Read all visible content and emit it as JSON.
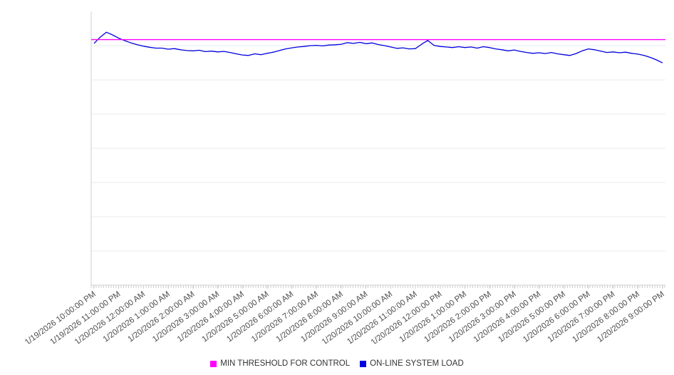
{
  "style": {
    "background": "#ffffff",
    "grid_color": "#ebebeb",
    "axis_color": "#cfcfcf",
    "tick_label_color": "#4d4d4d",
    "legend_text_color": "#333333"
  },
  "chart_data": {
    "type": "line",
    "title": "",
    "xlabel": "",
    "ylabel": "",
    "ylim": [
      0,
      100
    ],
    "y_axis_labels_visible": false,
    "grid": "horizontal",
    "gridline_divisions": 8,
    "legend_position": "bottom",
    "x_tick_rotation": -36,
    "categories": [
      "1/19/2026 10:00:00 PM",
      "1/19/2026 11:00:00 PM",
      "1/20/2026 12:00:00 AM",
      "1/20/2026 1:00:00 AM",
      "1/20/2026 2:00:00 AM",
      "1/20/2026 3:00:00 AM",
      "1/20/2026 4:00:00 AM",
      "1/20/2026 5:00:00 AM",
      "1/20/2026 6:00:00 AM",
      "1/20/2026 7:00:00 AM",
      "1/20/2026 8:00:00 AM",
      "1/20/2026 9:00:00 AM",
      "1/20/2026 10:00:00 AM",
      "1/20/2026 11:00:00 AM",
      "1/20/2026 12:00:00 PM",
      "1/20/2026 1:00:00 PM",
      "1/20/2026 2:00:00 PM",
      "1/20/2026 3:00:00 PM",
      "1/20/2026 4:00:00 PM",
      "1/20/2026 5:00:00 PM",
      "1/20/2026 6:00:00 PM",
      "1/20/2026 7:00:00 PM",
      "1/20/2026 8:00:00 PM",
      "1/20/2026 9:00:00 PM"
    ],
    "series": [
      {
        "name": "MIN THRESHOLD FOR CONTROL",
        "color": "#ff00ff",
        "type": "threshold",
        "value": 89.7
      },
      {
        "name": "ON-LINE SYSTEM LOAD",
        "color": "#0000e0",
        "type": "line",
        "values": [
          88.3,
          90.6,
          92.4,
          91.4,
          90.2,
          89.3,
          88.5,
          87.8,
          87.3,
          86.9,
          86.6,
          86.6,
          86.2,
          86.4,
          86.0,
          85.7,
          85.6,
          85.8,
          85.3,
          85.5,
          85.2,
          85.4,
          85.0,
          84.5,
          84.1,
          83.9,
          84.5,
          84.2,
          84.7,
          85.1,
          85.7,
          86.3,
          86.7,
          87.0,
          87.2,
          87.5,
          87.6,
          87.4,
          87.7,
          87.8,
          88.0,
          88.6,
          88.3,
          88.7,
          88.2,
          88.5,
          87.9,
          87.5,
          87.0,
          86.5,
          86.7,
          86.3,
          86.4,
          88.0,
          89.4,
          87.6,
          87.2,
          87.0,
          86.8,
          87.1,
          86.8,
          87.0,
          86.6,
          87.1,
          86.8,
          86.3,
          86.0,
          85.6,
          85.9,
          85.4,
          85.0,
          84.7,
          84.9,
          84.6,
          85.0,
          84.5,
          84.2,
          83.9,
          84.6,
          85.6,
          86.3,
          86.0,
          85.5,
          85.0,
          85.2,
          84.9,
          85.1,
          84.7,
          84.4,
          83.9,
          83.2,
          82.3,
          81.2
        ]
      }
    ]
  },
  "legend": {
    "threshold_label": "MIN THRESHOLD FOR CONTROL",
    "load_label": "ON-LINE SYSTEM LOAD"
  }
}
